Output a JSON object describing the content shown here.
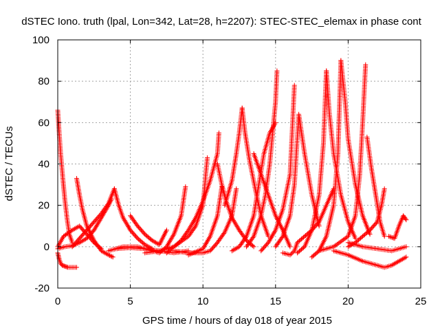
{
  "chart_data": {
    "type": "scatter",
    "title": "dSTEC Iono. truth (lpal, Lon=342, Lat=28, h=2207): STEC-STEC_elemax in phase cont",
    "xlabel": "GPS time / hours of day 018 of year 2015",
    "ylabel": "dSTEC  / TECUs",
    "xlim": [
      0,
      25
    ],
    "ylim": [
      -20,
      100
    ],
    "x_ticks": [
      0,
      5,
      10,
      15,
      20,
      25
    ],
    "y_ticks": [
      -20,
      0,
      20,
      40,
      60,
      80,
      100
    ],
    "x_tick_labels": [
      "0",
      "5",
      "10",
      "15",
      "20",
      "25"
    ],
    "y_tick_labels": [
      "-20",
      "0",
      "20",
      "40",
      "60",
      "80",
      "100"
    ],
    "grid": true,
    "legend": "none",
    "marker": "plus",
    "color": "#ff0000",
    "series": [
      {
        "x": [
          0.0,
          0.1,
          0.2,
          0.3,
          0.5,
          0.7,
          1.0,
          1.3
        ],
        "y": [
          -3,
          -6,
          -8,
          -9,
          -9.5,
          -10,
          -10,
          -10
        ]
      },
      {
        "x": [
          0.0,
          0.1,
          0.2,
          0.35,
          0.5,
          0.65,
          0.8,
          1.0
        ],
        "y": [
          66,
          55,
          45,
          33,
          22,
          13,
          6,
          2
        ]
      },
      {
        "x": [
          0.0,
          0.5,
          1.0,
          1.5,
          2.0,
          2.5,
          3.0,
          3.5,
          3.7
        ],
        "y": [
          -1,
          0,
          0.5,
          2,
          4,
          8,
          14,
          20,
          23
        ]
      },
      {
        "x": [
          1.3,
          1.5,
          1.7,
          2.0,
          2.5,
          3.0,
          3.5,
          3.8
        ],
        "y": [
          33,
          25,
          18,
          10,
          3,
          -2,
          -4,
          -5
        ]
      },
      {
        "x": [
          0.0,
          0.4,
          1.0,
          1.5,
          2.0,
          2.5,
          3.0
        ],
        "y": [
          0,
          5,
          8,
          10,
          6,
          2,
          -1
        ]
      },
      {
        "x": [
          1.0,
          1.5,
          2.0,
          2.5,
          3.0,
          3.5,
          3.9
        ],
        "y": [
          0,
          4,
          8,
          12,
          16,
          21,
          28
        ]
      },
      {
        "x": [
          3.9,
          4.2,
          4.5,
          5.0,
          5.5,
          6.0,
          6.5
        ],
        "y": [
          28,
          20,
          14,
          8,
          4,
          1,
          -1
        ]
      },
      {
        "x": [
          4.0,
          4.5,
          5.0,
          5.5,
          6.0,
          6.5,
          7.0,
          7.5,
          8.0,
          8.5,
          8.8
        ],
        "y": [
          -1,
          0,
          0,
          0,
          -1,
          -2,
          -3,
          0,
          6,
          15,
          29
        ]
      },
      {
        "x": [
          3.5,
          4.0,
          5.0,
          6.0,
          7.0,
          8.0,
          9.0
        ],
        "y": [
          -2,
          -1,
          -0.5,
          -1,
          -2,
          -3,
          -2
        ]
      },
      {
        "x": [
          5.0,
          5.5,
          6.0,
          6.5,
          7.0,
          7.5
        ],
        "y": [
          15,
          10,
          6,
          3,
          1,
          8
        ]
      },
      {
        "x": [
          6.0,
          7.0,
          8.0,
          9.0,
          9.5,
          10.0,
          10.3
        ],
        "y": [
          -3,
          -2,
          0,
          5,
          10,
          20,
          43
        ]
      },
      {
        "x": [
          7.5,
          8.0,
          8.5,
          9.0,
          9.5,
          10.0,
          10.5,
          11.0,
          11.1
        ],
        "y": [
          -3,
          0,
          3,
          8,
          14,
          22,
          32,
          45,
          55
        ]
      },
      {
        "x": [
          8.0,
          9.0,
          10.0,
          10.5,
          11.0,
          11.5,
          12.0,
          12.3
        ],
        "y": [
          -2,
          -3,
          -3,
          -2,
          2,
          7,
          15,
          28
        ]
      },
      {
        "x": [
          9.0,
          10.0,
          10.5,
          11.0,
          11.3
        ],
        "y": [
          -4,
          -1,
          5,
          15,
          29
        ]
      },
      {
        "x": [
          11.0,
          11.3,
          11.6,
          12.0,
          12.5,
          13.0,
          13.5
        ],
        "y": [
          40,
          30,
          22,
          14,
          8,
          3,
          0
        ]
      },
      {
        "x": [
          11.5,
          12.0,
          12.3,
          12.5,
          12.7
        ],
        "y": [
          20,
          32,
          45,
          55,
          67
        ]
      },
      {
        "x": [
          12.7,
          12.9,
          13.2,
          13.6,
          14.0,
          14.5
        ],
        "y": [
          67,
          55,
          42,
          28,
          15,
          5
        ]
      },
      {
        "x": [
          12.0,
          12.5,
          13.0,
          13.5,
          13.8,
          14.2,
          14.6,
          15.0
        ],
        "y": [
          -2,
          0,
          5,
          15,
          28,
          45,
          55,
          60
        ]
      },
      {
        "x": [
          13.5,
          14.0,
          14.5,
          15.0,
          15.5,
          16.0
        ],
        "y": [
          45,
          35,
          25,
          15,
          8,
          0
        ]
      },
      {
        "x": [
          13.0,
          13.5,
          14.0,
          14.3,
          14.6,
          14.8,
          15.0,
          15.1
        ],
        "y": [
          0,
          5,
          15,
          25,
          40,
          55,
          70,
          85
        ]
      },
      {
        "x": [
          14.0,
          14.5,
          15.0,
          15.5,
          16.0,
          16.3
        ],
        "y": [
          -2,
          2,
          8,
          18,
          35,
          78
        ]
      },
      {
        "x": [
          15.0,
          15.5,
          16.0,
          16.3,
          16.6,
          17.0,
          17.5,
          18.0
        ],
        "y": [
          0,
          5,
          15,
          30,
          64,
          45,
          25,
          10
        ]
      },
      {
        "x": [
          15.5,
          16.0,
          16.3,
          16.5,
          17.0,
          17.5,
          18.0,
          18.5,
          19.0
        ],
        "y": [
          -3,
          -4,
          -2,
          2,
          5,
          8,
          12,
          20,
          28
        ]
      },
      {
        "x": [
          16.5,
          17.0,
          17.5,
          18.0,
          18.3,
          18.5
        ],
        "y": [
          -3,
          0,
          8,
          25,
          50,
          85
        ]
      },
      {
        "x": [
          18.5,
          18.7,
          19.0,
          19.5,
          20.0,
          20.5
        ],
        "y": [
          85,
          65,
          45,
          25,
          12,
          4
        ]
      },
      {
        "x": [
          17.5,
          18.0,
          18.5,
          19.0,
          19.3,
          19.5
        ],
        "y": [
          -5,
          -2,
          5,
          20,
          45,
          90
        ]
      },
      {
        "x": [
          19.5,
          19.8,
          20.0,
          20.5,
          21.0,
          21.5
        ],
        "y": [
          90,
          70,
          52,
          30,
          15,
          6
        ]
      },
      {
        "x": [
          18.0,
          19.0,
          20.0,
          20.5,
          20.8,
          21.0,
          21.2
        ],
        "y": [
          -2,
          0,
          5,
          15,
          35,
          60,
          88
        ]
      },
      {
        "x": [
          21.3,
          21.6,
          21.9,
          22.2,
          22.5
        ],
        "y": [
          53,
          38,
          25,
          12,
          5
        ]
      },
      {
        "x": [
          20.0,
          20.5,
          21.0,
          21.5,
          22.0,
          22.3,
          22.5
        ],
        "y": [
          0,
          2,
          5,
          8,
          12,
          20,
          28
        ]
      },
      {
        "x": [
          19.0,
          20.0,
          21.0,
          22.0,
          22.5,
          23.0,
          23.5,
          24.0
        ],
        "y": [
          -2,
          -4,
          -7,
          -9,
          -10,
          -9,
          -7,
          -5
        ]
      },
      {
        "x": [
          20.0,
          21.0,
          22.0,
          23.0,
          23.5,
          24.0
        ],
        "y": [
          2,
          0,
          -1,
          -2,
          -1,
          0
        ]
      },
      {
        "x": [
          22.8,
          23.2,
          23.5,
          23.8,
          24.0
        ],
        "y": [
          5,
          4,
          10,
          15,
          13
        ]
      }
    ]
  }
}
